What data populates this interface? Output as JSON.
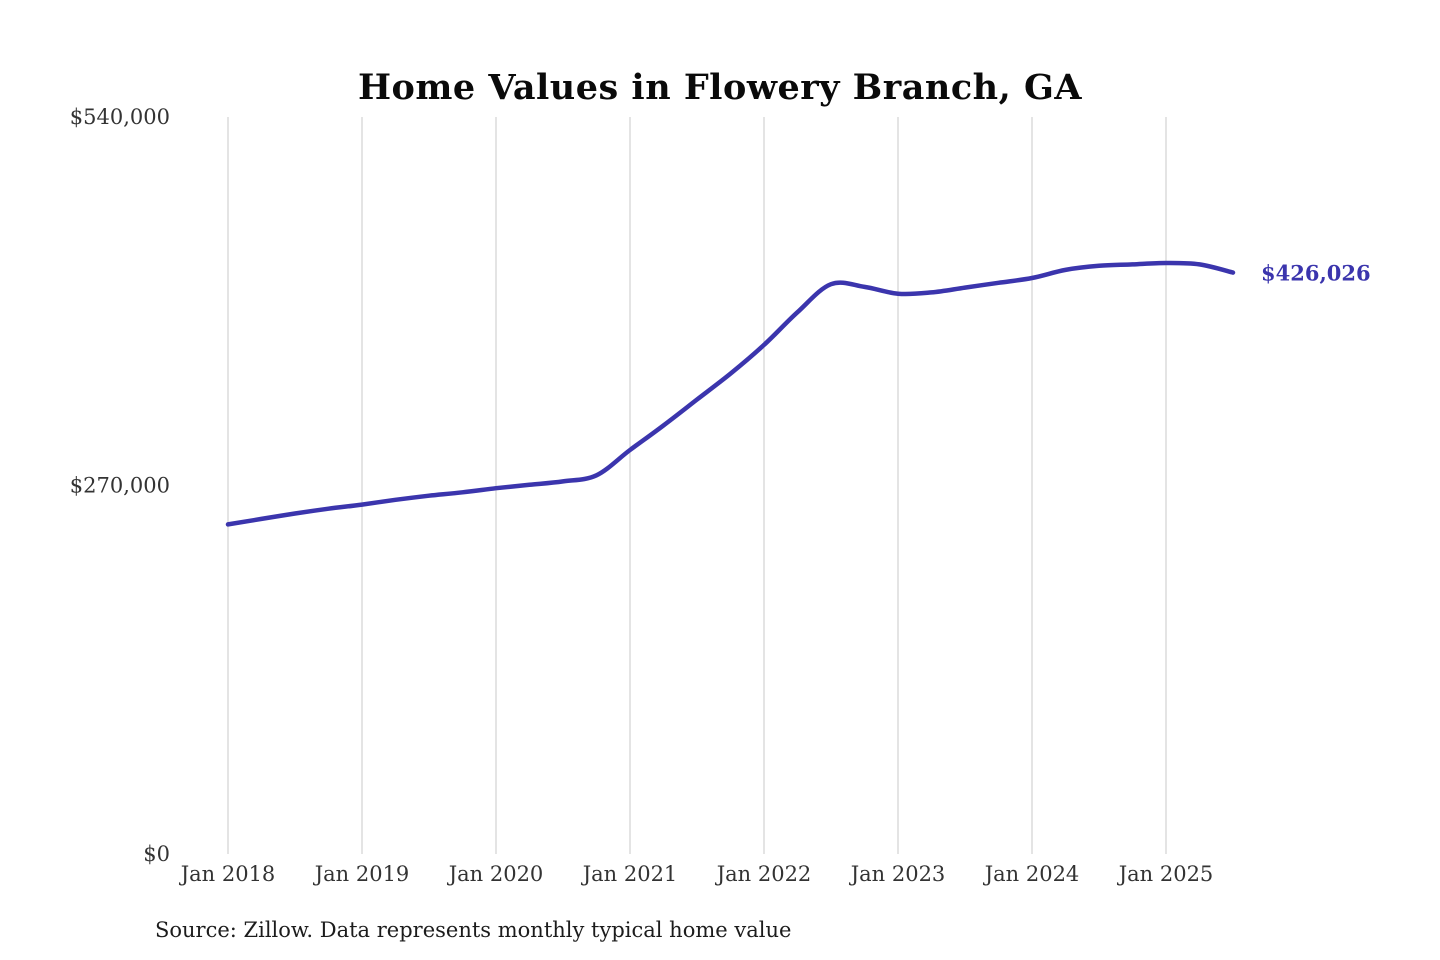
{
  "chart_data": {
    "type": "line",
    "title": "Home Values in Flowery Branch, GA",
    "xlabel": "",
    "ylabel": "",
    "xlim": [
      2018.0,
      2025.58
    ],
    "ylim": [
      0,
      540000
    ],
    "grid": "vertical-only",
    "grid_color": "#c8c8c8",
    "axis_text_color": "#333333",
    "x_ticks": [
      {
        "t": 2018,
        "label": "Jan 2018"
      },
      {
        "t": 2019,
        "label": "Jan 2019"
      },
      {
        "t": 2020,
        "label": "Jan 2020"
      },
      {
        "t": 2021,
        "label": "Jan 2021"
      },
      {
        "t": 2022,
        "label": "Jan 2022"
      },
      {
        "t": 2023,
        "label": "Jan 2023"
      },
      {
        "t": 2024,
        "label": "Jan 2024"
      },
      {
        "t": 2025,
        "label": "Jan 2025"
      }
    ],
    "y_ticks": [
      {
        "v": 0,
        "label": "$0"
      },
      {
        "v": 270000,
        "label": "$270,000"
      },
      {
        "v": 540000,
        "label": "$540,000"
      }
    ],
    "series": [
      {
        "name": "Monthly typical home value",
        "color": "#3b35ad",
        "points": [
          [
            2018.0,
            241500
          ],
          [
            2018.25,
            245500
          ],
          [
            2018.5,
            249500
          ],
          [
            2018.75,
            253000
          ],
          [
            2019.0,
            256000
          ],
          [
            2019.25,
            259500
          ],
          [
            2019.5,
            262500
          ],
          [
            2019.75,
            265000
          ],
          [
            2020.0,
            268000
          ],
          [
            2020.25,
            270500
          ],
          [
            2020.5,
            273000
          ],
          [
            2020.75,
            277500
          ],
          [
            2021.0,
            296000
          ],
          [
            2021.25,
            314000
          ],
          [
            2021.5,
            333000
          ],
          [
            2021.75,
            352000
          ],
          [
            2022.0,
            373000
          ],
          [
            2022.25,
            397000
          ],
          [
            2022.5,
            417500
          ],
          [
            2022.75,
            415500
          ],
          [
            2023.0,
            410500
          ],
          [
            2023.25,
            411500
          ],
          [
            2023.5,
            415000
          ],
          [
            2023.75,
            418500
          ],
          [
            2024.0,
            422000
          ],
          [
            2024.25,
            428000
          ],
          [
            2024.5,
            431000
          ],
          [
            2024.75,
            432000
          ],
          [
            2025.0,
            433000
          ],
          [
            2025.25,
            432000
          ],
          [
            2025.5,
            426026
          ]
        ]
      }
    ],
    "annotation": {
      "text": "$426,026",
      "at": [
        2025.5,
        426026
      ]
    },
    "source_note": "Source: Zillow. Data represents monthly typical home value"
  }
}
